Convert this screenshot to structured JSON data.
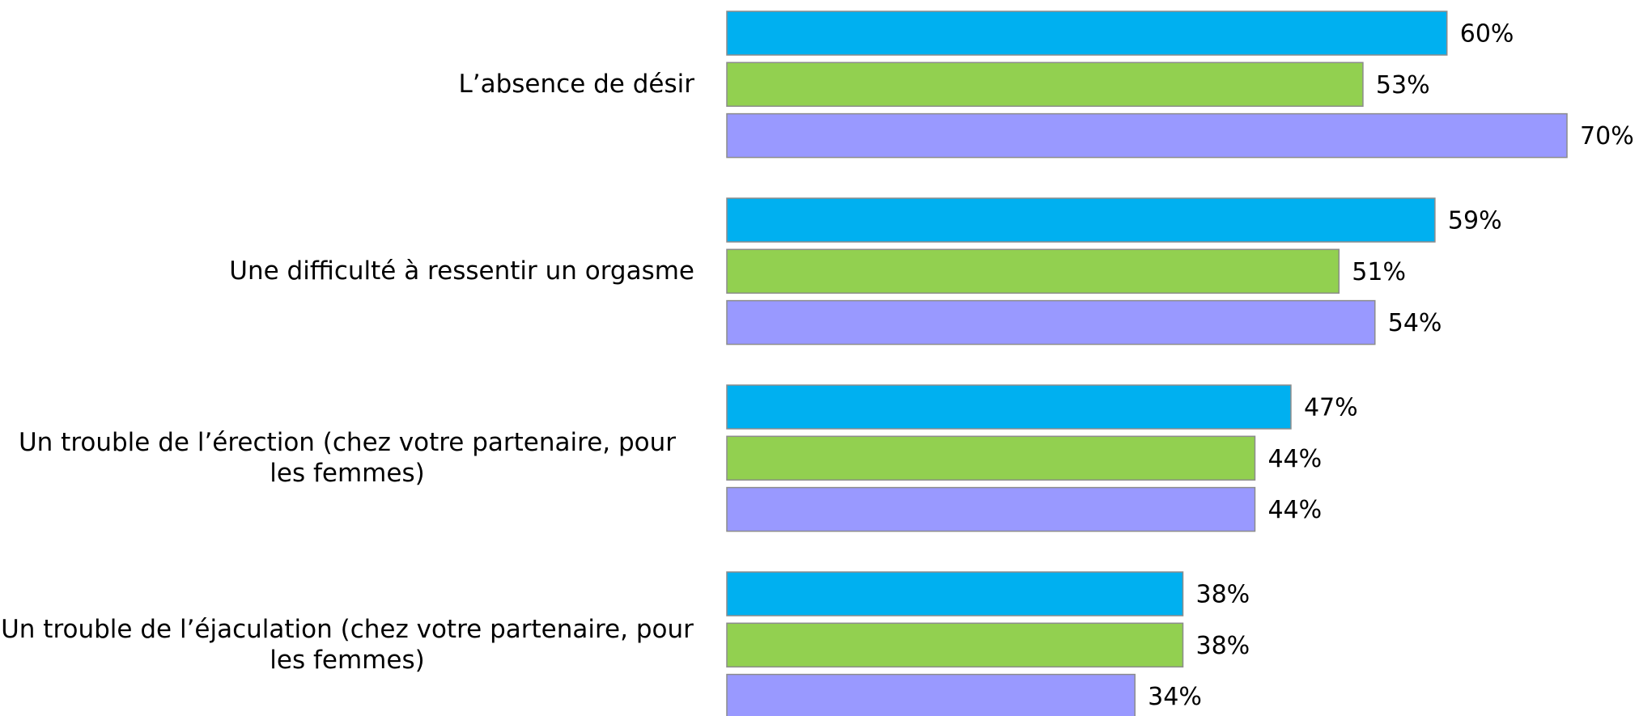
{
  "chart_data": {
    "type": "bar",
    "orientation": "horizontal",
    "categories": [
      "L’absence de désir",
      "Une difficulté à ressentir un orgasme",
      "Un trouble de l’érection (chez votre partenaire, pour les femmes)",
      "Un trouble de l’éjaculation (chez votre partenaire, pour les femmes)"
    ],
    "series": [
      {
        "color": "#00b0f0",
        "values": [
          60,
          59,
          47,
          38
        ],
        "value_labels": [
          "60%",
          "59%",
          "47%",
          "38%"
        ]
      },
      {
        "color": "#92d050",
        "values": [
          53,
          51,
          44,
          38
        ],
        "value_labels": [
          "53%",
          "51%",
          "44%",
          "38%"
        ]
      },
      {
        "color": "#9999ff",
        "values": [
          70,
          54,
          44,
          34
        ],
        "value_labels": [
          "70%",
          "54%",
          "44%",
          "34%"
        ]
      }
    ],
    "xlim": [
      0,
      76
    ]
  }
}
